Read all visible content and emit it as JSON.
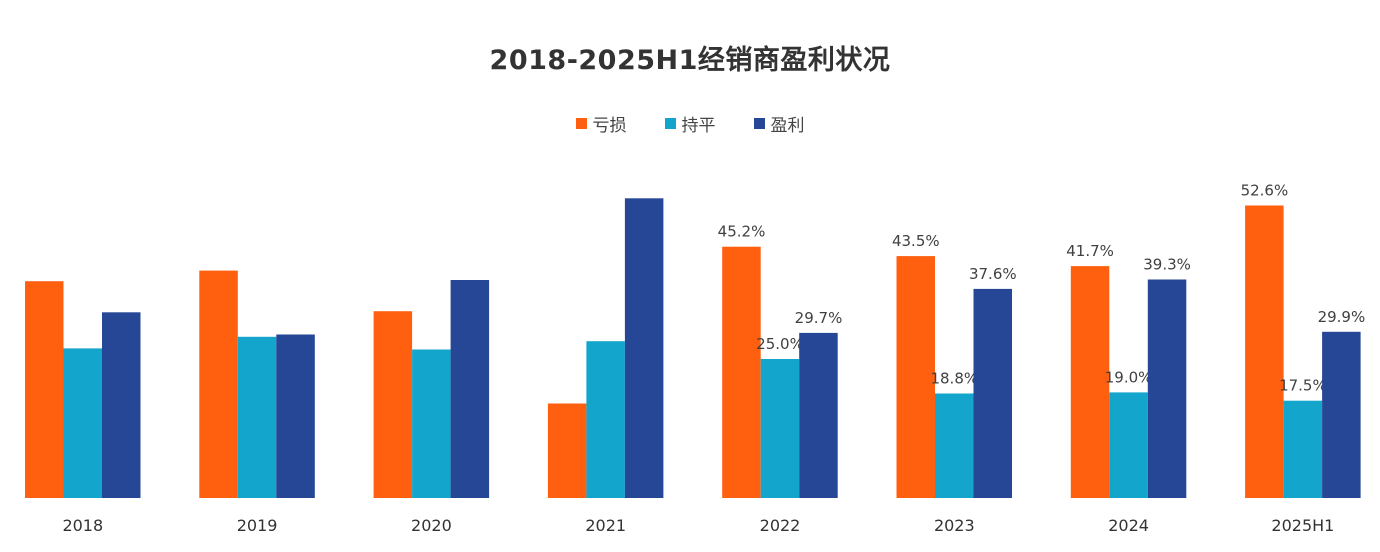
{
  "chart_data": {
    "type": "bar",
    "title": "2018-2025H1经销商盈利状况",
    "categories": [
      "2018",
      "2019",
      "2020",
      "2021",
      "2022",
      "2023",
      "2024",
      "2025H1"
    ],
    "series": [
      {
        "name": "亏损",
        "color": "#ff6010",
        "values": [
          39.0,
          40.9,
          33.6,
          17.0,
          45.2,
          43.5,
          41.7,
          52.6
        ],
        "labels": [
          "",
          "",
          "",
          "",
          "45.2%",
          "43.5%",
          "41.7%",
          "52.6%"
        ]
      },
      {
        "name": "持平",
        "color": "#13a5cb",
        "values": [
          26.9,
          29.0,
          26.7,
          28.2,
          25.0,
          18.8,
          19.0,
          17.5
        ],
        "labels": [
          "",
          "",
          "",
          "",
          "25.0%",
          "18.8%",
          "19.0%",
          "17.5%"
        ]
      },
      {
        "name": "盈利",
        "color": "#264796",
        "values": [
          33.4,
          29.4,
          39.2,
          53.9,
          29.7,
          37.6,
          39.3,
          29.9
        ],
        "labels": [
          "",
          "",
          "",
          "",
          "29.7%",
          "37.6%",
          "39.3%",
          "29.9%"
        ]
      }
    ],
    "ylim": [
      0,
      60
    ],
    "grid": false,
    "legend_position": "top-center",
    "xlabel": "",
    "ylabel": ""
  }
}
